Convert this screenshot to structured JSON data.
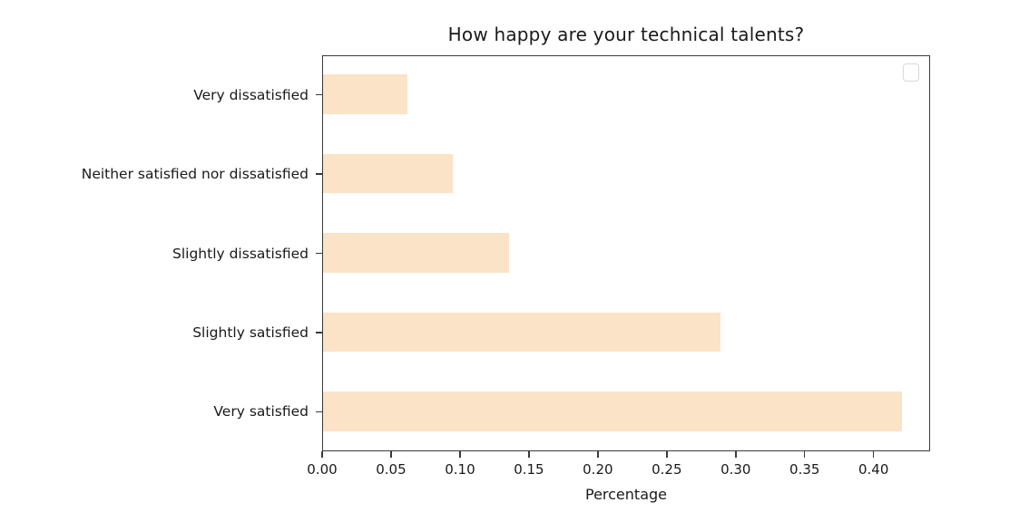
{
  "figure": {
    "background_color": "#ffffff"
  },
  "chart_data": {
    "type": "bar",
    "orientation": "horizontal",
    "title": "How happy are your technical talents?",
    "categories": [
      "Very dissatisfied",
      "Neither satisfied nor dissatisfied",
      "Slightly dissatisfied",
      "Slightly satisfied",
      "Very satisfied"
    ],
    "category_order": "top-to-bottom",
    "values": [
      0.061,
      0.094,
      0.135,
      0.288,
      0.42
    ],
    "xlabel": "Percentage",
    "ylabel": "",
    "xlim": [
      0,
      0.441
    ],
    "xticks": [
      0.0,
      0.05,
      0.1,
      0.15,
      0.2,
      0.25,
      0.3,
      0.35,
      0.4
    ],
    "xtick_labels": [
      "0.00",
      "0.05",
      "0.10",
      "0.15",
      "0.20",
      "0.25",
      "0.30",
      "0.35",
      "0.40"
    ],
    "grid": false,
    "legend": {
      "visible": true,
      "entries": [],
      "position": "upper right"
    }
  },
  "style": {
    "bar_color": "#fae3c6",
    "spine_color": "#3a3a3a",
    "text_color": "#1a1a1a",
    "legend_border_color": "#d9d9d9"
  }
}
